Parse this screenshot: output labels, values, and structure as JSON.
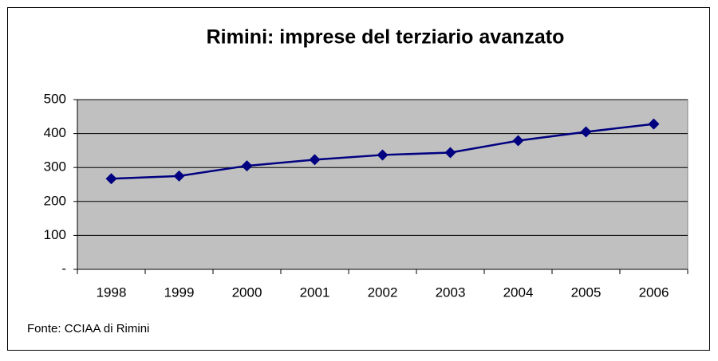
{
  "chart_data": {
    "type": "line",
    "title": "Rimini: imprese del terziario avanzato",
    "categories": [
      "1998",
      "1999",
      "2000",
      "2001",
      "2002",
      "2003",
      "2004",
      "2005",
      "2006"
    ],
    "series": [
      {
        "name": "Rimini",
        "color": "#000080",
        "values": [
          267,
          275,
          305,
          323,
          337,
          344,
          379,
          405,
          428
        ]
      }
    ],
    "ylim": [
      0,
      500
    ],
    "yticks": [
      {
        "value": 0,
        "label": "-"
      },
      100,
      200,
      300,
      400,
      500
    ],
    "grid": true,
    "legend": false,
    "source": "Fonte: CCIAA di Rimini"
  }
}
